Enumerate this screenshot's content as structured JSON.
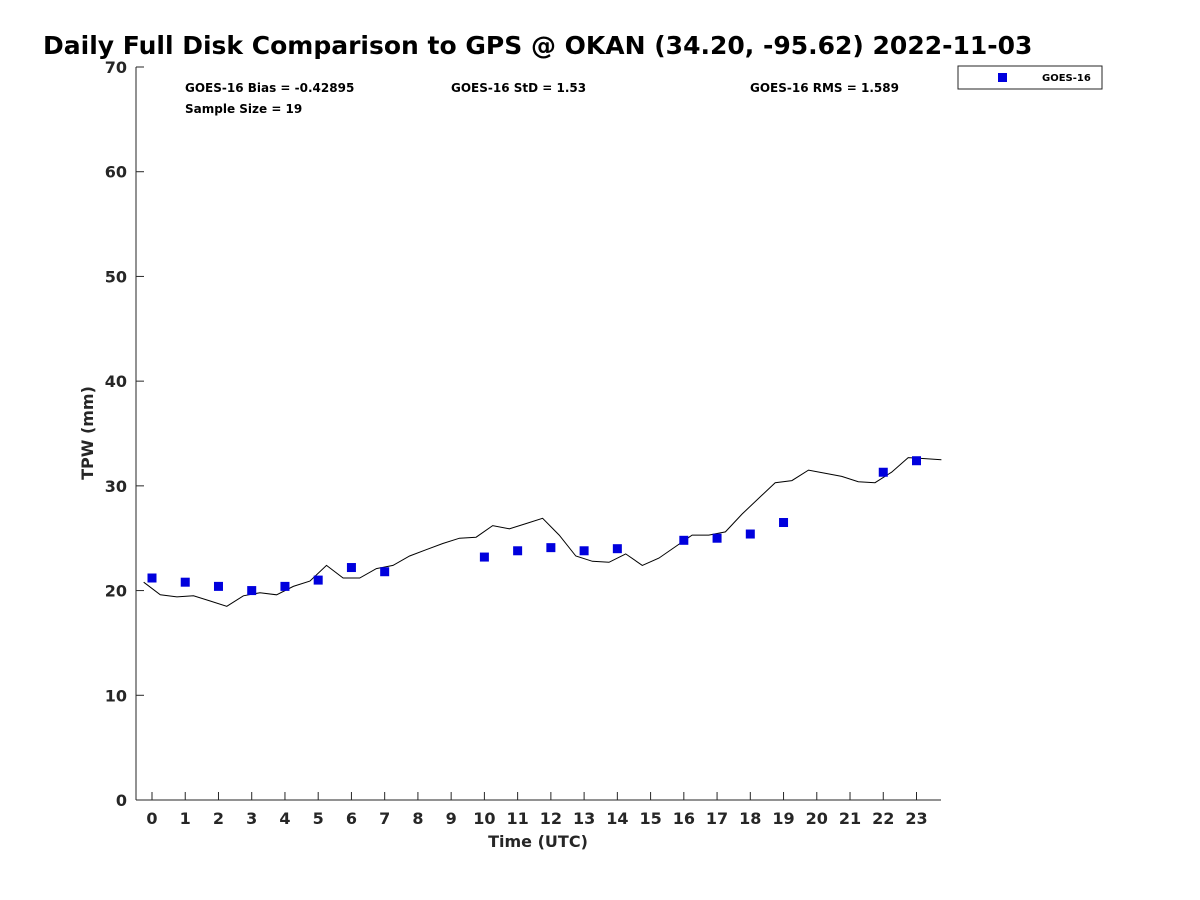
{
  "chart_data": {
    "type": "scatter",
    "title": "Daily Full Disk Comparison to GPS @ OKAN (34.20, -95.62) 2022-11-03",
    "xlabel": "Time (UTC)",
    "ylabel": "TPW (mm)",
    "xlim": [
      -0.5,
      23.75
    ],
    "ylim": [
      0,
      70
    ],
    "x_ticks": [
      0,
      1,
      2,
      3,
      4,
      5,
      6,
      7,
      8,
      9,
      10,
      11,
      12,
      13,
      14,
      15,
      16,
      17,
      18,
      19,
      20,
      21,
      22,
      23
    ],
    "y_ticks": [
      0,
      10,
      20,
      30,
      40,
      50,
      60,
      70
    ],
    "grid": false,
    "legend_position": "top-right",
    "stats": {
      "bias": "GOES-16 Bias = -0.42895",
      "std": "GOES-16 StD = 1.53",
      "rms": "GOES-16 RMS = 1.589",
      "sample_size": "Sample Size = 19"
    },
    "series": [
      {
        "name": "GOES-16",
        "kind": "markers",
        "color": "#0000dd",
        "marker": "square",
        "points": [
          [
            0,
            21.2
          ],
          [
            1,
            20.8
          ],
          [
            2,
            20.4
          ],
          [
            3,
            20.0
          ],
          [
            4,
            20.4
          ],
          [
            5,
            21.0
          ],
          [
            6,
            22.2
          ],
          [
            7,
            21.8
          ],
          [
            10,
            23.2
          ],
          [
            11,
            23.8
          ],
          [
            12,
            24.1
          ],
          [
            13,
            23.8
          ],
          [
            14,
            24.0
          ],
          [
            16,
            24.8
          ],
          [
            17,
            25.0
          ],
          [
            18,
            25.4
          ],
          [
            19,
            26.5
          ],
          [
            22,
            31.3
          ],
          [
            23,
            32.4
          ]
        ]
      },
      {
        "kind": "line",
        "color": "#000000",
        "points": [
          [
            -0.25,
            20.8
          ],
          [
            0.25,
            19.6
          ],
          [
            0.75,
            19.4
          ],
          [
            1.25,
            19.5
          ],
          [
            1.75,
            19.0
          ],
          [
            2.25,
            18.5
          ],
          [
            2.75,
            19.5
          ],
          [
            3.25,
            19.8
          ],
          [
            3.75,
            19.6
          ],
          [
            4.25,
            20.4
          ],
          [
            4.75,
            20.9
          ],
          [
            5.25,
            22.4
          ],
          [
            5.75,
            21.2
          ],
          [
            6.25,
            21.2
          ],
          [
            6.75,
            22.1
          ],
          [
            7.25,
            22.4
          ],
          [
            7.75,
            23.3
          ],
          [
            8.25,
            23.9
          ],
          [
            8.75,
            24.5
          ],
          [
            9.25,
            25.0
          ],
          [
            9.75,
            25.1
          ],
          [
            10.25,
            26.2
          ],
          [
            10.75,
            25.9
          ],
          [
            11.25,
            26.4
          ],
          [
            11.75,
            26.9
          ],
          [
            12.25,
            25.3
          ],
          [
            12.75,
            23.3
          ],
          [
            13.25,
            22.8
          ],
          [
            13.75,
            22.7
          ],
          [
            14.25,
            23.5
          ],
          [
            14.75,
            22.4
          ],
          [
            15.25,
            23.1
          ],
          [
            15.75,
            24.2
          ],
          [
            16.25,
            25.3
          ],
          [
            16.75,
            25.3
          ],
          [
            17.25,
            25.6
          ],
          [
            17.75,
            27.3
          ],
          [
            18.25,
            28.8
          ],
          [
            18.75,
            30.3
          ],
          [
            19.25,
            30.5
          ],
          [
            19.75,
            31.5
          ],
          [
            20.25,
            31.2
          ],
          [
            20.75,
            30.9
          ],
          [
            21.25,
            30.4
          ],
          [
            21.75,
            30.3
          ],
          [
            22.25,
            31.3
          ],
          [
            22.75,
            32.7
          ],
          [
            23.25,
            32.6
          ],
          [
            23.75,
            32.5
          ]
        ]
      }
    ]
  }
}
